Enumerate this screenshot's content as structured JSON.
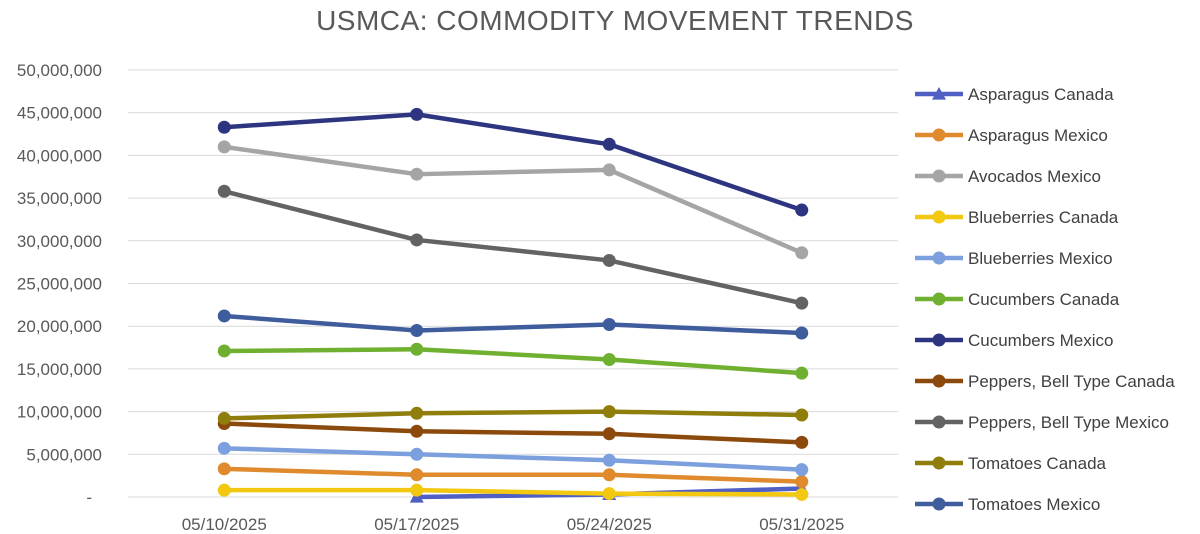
{
  "chart_data": {
    "type": "line",
    "title": "USMCA: COMMODITY MOVEMENT TRENDS",
    "xlabel": "",
    "ylabel": "",
    "categories": [
      "05/10/2025",
      "05/17/2025",
      "05/24/2025",
      "05/31/2025"
    ],
    "y_ticks": [
      "-",
      "5,000,000",
      "10,000,000",
      "15,000,000",
      "20,000,000",
      "25,000,000",
      "30,000,000",
      "35,000,000",
      "40,000,000",
      "45,000,000",
      "50,000,000"
    ],
    "ylim": [
      0,
      50000000
    ],
    "grid": true,
    "legend_position": "right",
    "series": [
      {
        "name": "Asparagus Canada",
        "color": "#4f5fc4",
        "marker": "triangle",
        "values": [
          null,
          0,
          300000,
          1000000
        ]
      },
      {
        "name": "Asparagus Mexico",
        "color": "#e08a2e",
        "marker": "circle",
        "values": [
          3300000,
          2600000,
          2600000,
          1800000
        ]
      },
      {
        "name": "Avocados Mexico",
        "color": "#a5a5a5",
        "marker": "circle",
        "values": [
          41000000,
          37800000,
          38300000,
          28600000
        ]
      },
      {
        "name": "Blueberries Canada",
        "color": "#f2c811",
        "marker": "circle",
        "values": [
          800000,
          800000,
          400000,
          300000
        ]
      },
      {
        "name": "Blueberries Mexico",
        "color": "#7c9fdd",
        "marker": "circle",
        "values": [
          5700000,
          5000000,
          4300000,
          3200000
        ]
      },
      {
        "name": "Cucumbers Canada",
        "color": "#70b030",
        "marker": "circle",
        "values": [
          17100000,
          17300000,
          16100000,
          14500000
        ]
      },
      {
        "name": "Cucumbers Mexico",
        "color": "#2e3580",
        "marker": "circle",
        "values": [
          43300000,
          44800000,
          41300000,
          33600000
        ]
      },
      {
        "name": "Peppers, Bell Type Canada",
        "color": "#8b4a0c",
        "marker": "circle",
        "values": [
          8600000,
          7700000,
          7400000,
          6400000
        ]
      },
      {
        "name": "Peppers, Bell Type Mexico",
        "color": "#636363",
        "marker": "circle",
        "values": [
          35800000,
          30100000,
          27700000,
          22700000
        ]
      },
      {
        "name": "Tomatoes Canada",
        "color": "#8f7d0c",
        "marker": "circle",
        "values": [
          9200000,
          9800000,
          10000000,
          9600000
        ]
      },
      {
        "name": "Tomatoes Mexico",
        "color": "#3f5d9c",
        "marker": "circle",
        "values": [
          21200000,
          19500000,
          20200000,
          19200000
        ]
      }
    ]
  }
}
